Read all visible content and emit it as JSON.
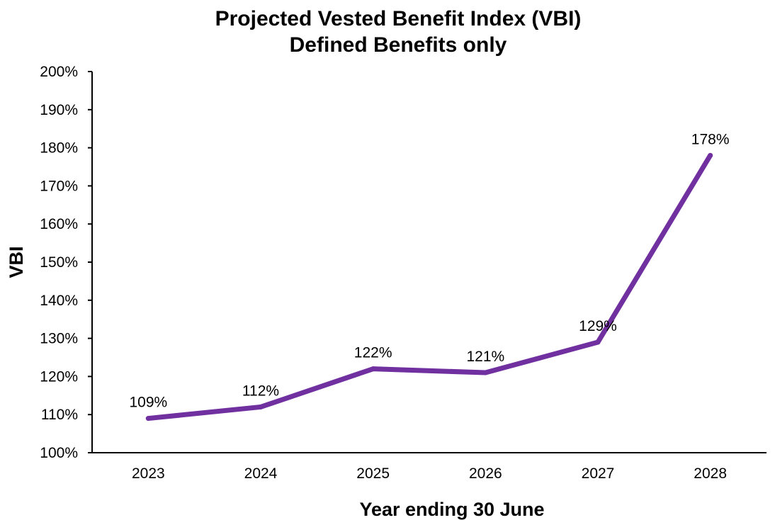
{
  "chart_data": {
    "type": "line",
    "title": "Projected Vested Benefit Index (VBI)",
    "subtitle": "Defined Benefits only",
    "xlabel": "Year ending 30 June",
    "ylabel": "VBI",
    "categories": [
      "2023",
      "2024",
      "2025",
      "2026",
      "2027",
      "2028"
    ],
    "series": [
      {
        "values": [
          109,
          112,
          122,
          121,
          129,
          178
        ],
        "data_labels": [
          "109%",
          "112%",
          "122%",
          "121%",
          "129%",
          "178%"
        ],
        "color": "#7030a0"
      }
    ],
    "ylim": [
      100,
      200
    ],
    "yticks": [
      100,
      110,
      120,
      130,
      140,
      150,
      160,
      170,
      180,
      190,
      200
    ],
    "ytick_labels": [
      "100%",
      "110%",
      "120%",
      "130%",
      "140%",
      "150%",
      "160%",
      "170%",
      "180%",
      "190%",
      "200%"
    ],
    "grid": false,
    "legend": "none"
  }
}
